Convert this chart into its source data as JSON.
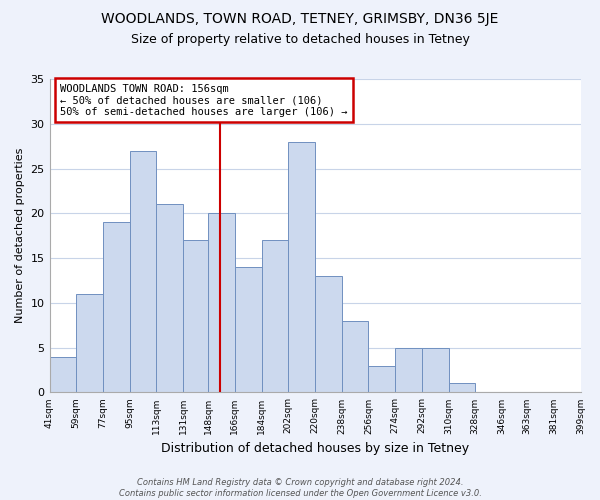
{
  "title": "WOODLANDS, TOWN ROAD, TETNEY, GRIMSBY, DN36 5JE",
  "subtitle": "Size of property relative to detached houses in Tetney",
  "xlabel": "Distribution of detached houses by size in Tetney",
  "ylabel": "Number of detached properties",
  "bins": [
    41,
    59,
    77,
    95,
    113,
    131,
    148,
    166,
    184,
    202,
    220,
    238,
    256,
    274,
    292,
    310,
    328,
    346,
    363,
    381,
    399
  ],
  "bin_labels": [
    "41sqm",
    "59sqm",
    "77sqm",
    "95sqm",
    "113sqm",
    "131sqm",
    "148sqm",
    "166sqm",
    "184sqm",
    "202sqm",
    "220sqm",
    "238sqm",
    "256sqm",
    "274sqm",
    "292sqm",
    "310sqm",
    "328sqm",
    "346sqm",
    "363sqm",
    "381sqm",
    "399sqm"
  ],
  "counts": [
    4,
    11,
    19,
    27,
    21,
    17,
    20,
    14,
    17,
    28,
    13,
    8,
    3,
    5,
    5,
    1,
    0,
    0,
    0,
    0
  ],
  "bar_color": "#ccd9ee",
  "bar_edge_color": "#7090c0",
  "vline_x": 156,
  "vline_color": "#cc0000",
  "annotation_text": "WOODLANDS TOWN ROAD: 156sqm\n← 50% of detached houses are smaller (106)\n50% of semi-detached houses are larger (106) →",
  "annotation_box_edge": "#cc0000",
  "annotation_box_face": "#ffffff",
  "ylim": [
    0,
    35
  ],
  "yticks": [
    0,
    5,
    10,
    15,
    20,
    25,
    30,
    35
  ],
  "footer_text": "Contains HM Land Registry data © Crown copyright and database right 2024.\nContains public sector information licensed under the Open Government Licence v3.0.",
  "background_color": "#eef2fb",
  "plot_bg_color": "#ffffff",
  "grid_color": "#c8d4e8",
  "title_fontsize": 10,
  "subtitle_fontsize": 9
}
